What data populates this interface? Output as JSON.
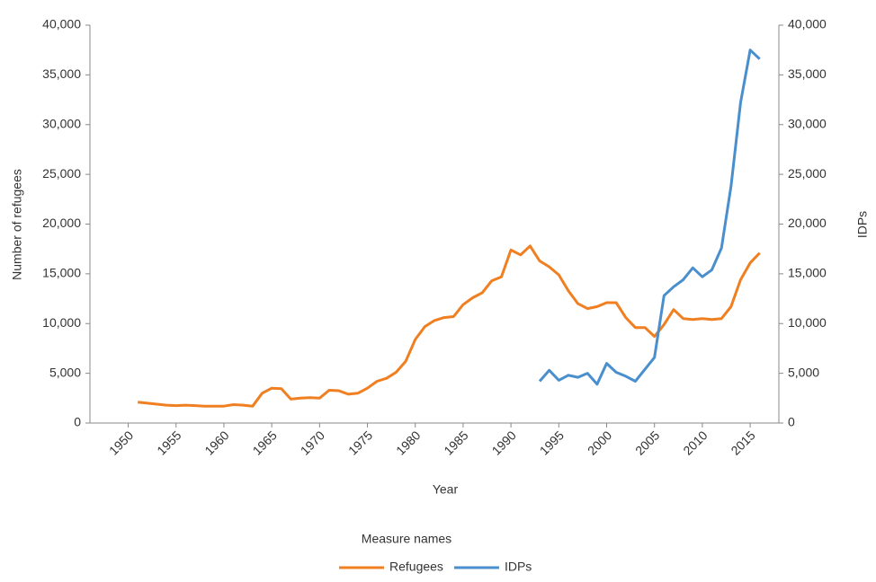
{
  "chart_data": {
    "type": "line",
    "x_label": "Year",
    "y_label": "Number of refugees",
    "y2_label": "IDPs",
    "legend_title": "Measure names",
    "xlim": [
      1946,
      2018
    ],
    "xticks": [
      1950,
      1955,
      1960,
      1965,
      1970,
      1975,
      1980,
      1985,
      1990,
      1995,
      2000,
      2005,
      2010,
      2015
    ],
    "ylim": [
      0,
      40000
    ],
    "yticks": [
      0,
      {
        "value": 5000,
        "label": "5,000"
      },
      {
        "value": 10000,
        "label": "10,000"
      },
      {
        "value": 15000,
        "label": "15,000"
      },
      {
        "value": 20000,
        "label": "20,000"
      },
      {
        "value": 25000,
        "label": "25,000"
      },
      {
        "value": 30000,
        "label": "30,000"
      },
      {
        "value": 35000,
        "label": "35,000"
      },
      {
        "value": 40000,
        "label": "40,000"
      }
    ],
    "y2lim": [
      0,
      40000
    ],
    "y2ticks": [
      0,
      {
        "value": 5000,
        "label": "5,000"
      },
      {
        "value": 10000,
        "label": "10,000"
      },
      {
        "value": 15000,
        "label": "15,000"
      },
      {
        "value": 20000,
        "label": "20,000"
      },
      {
        "value": 25000,
        "label": "25,000"
      },
      {
        "value": 30000,
        "label": "30,000"
      },
      {
        "value": 35000,
        "label": "35,000"
      },
      {
        "value": 40000,
        "label": "40,000"
      }
    ],
    "grid": false,
    "series": [
      {
        "name": "Refugees",
        "color": "#f07f22",
        "x": [
          1951,
          1952,
          1953,
          1954,
          1955,
          1956,
          1957,
          1958,
          1959,
          1960,
          1961,
          1962,
          1963,
          1964,
          1965,
          1966,
          1967,
          1968,
          1969,
          1970,
          1971,
          1972,
          1973,
          1974,
          1975,
          1976,
          1977,
          1978,
          1979,
          1980,
          1981,
          1982,
          1983,
          1984,
          1985,
          1986,
          1987,
          1988,
          1989,
          1990,
          1991,
          1992,
          1993,
          1994,
          1995,
          1996,
          1997,
          1998,
          1999,
          2000,
          2001,
          2002,
          2003,
          2004,
          2005,
          2006,
          2007,
          2008,
          2009,
          2010,
          2011,
          2012,
          2013,
          2014,
          2015,
          2016
        ],
        "values": [
          2100,
          2000,
          1900,
          1800,
          1750,
          1800,
          1750,
          1700,
          1700,
          1700,
          1850,
          1800,
          1700,
          3000,
          3500,
          3450,
          2400,
          2500,
          2550,
          2500,
          3300,
          3250,
          2900,
          3000,
          3500,
          4200,
          4500,
          5100,
          6200,
          8400,
          9700,
          10300,
          10600,
          10700,
          11900,
          12600,
          13100,
          14300,
          14700,
          17400,
          16900,
          17800,
          16300,
          15700,
          14900,
          13300,
          12000,
          11500,
          11700,
          12100,
          12100,
          10600,
          9600,
          9600,
          8700,
          9900,
          11400,
          10500,
          10400,
          10500,
          10400,
          10500,
          11700,
          14400,
          16100,
          17100
        ]
      },
      {
        "name": "IDPs",
        "color": "#4a8fcd",
        "axis": "y2",
        "x": [
          1993,
          1994,
          1995,
          1996,
          1997,
          1998,
          1999,
          2000,
          2001,
          2002,
          2003,
          2004,
          2005,
          2006,
          2007,
          2008,
          2009,
          2010,
          2011,
          2012,
          2013,
          2014,
          2015,
          2016
        ],
        "values": [
          4200,
          5300,
          4300,
          4800,
          4600,
          5000,
          3900,
          6000,
          5100,
          4700,
          4200,
          5400,
          6600,
          12800,
          13700,
          14400,
          15600,
          14700,
          15400,
          17600,
          23800,
          32200,
          37500,
          36600
        ]
      }
    ]
  }
}
